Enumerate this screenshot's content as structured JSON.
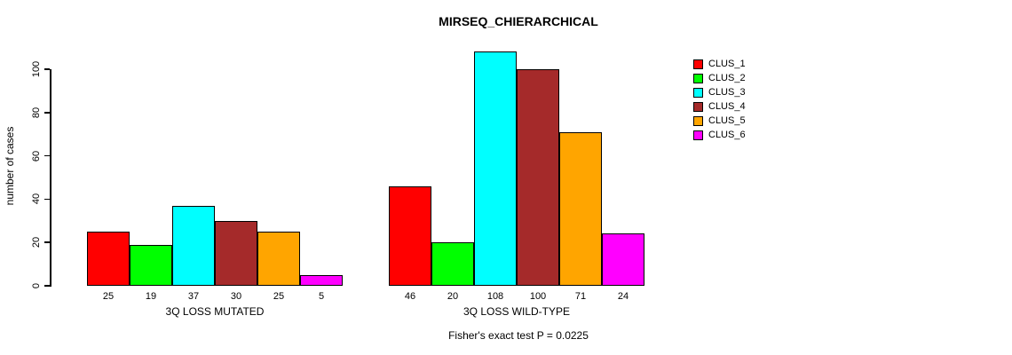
{
  "chart_data": {
    "type": "bar",
    "title": "MIRSEQ_CHIERARCHICAL",
    "ylabel": "number of cases",
    "ylim": [
      0,
      110
    ],
    "y_ticks": [
      0,
      20,
      40,
      60,
      80,
      100
    ],
    "grid": false,
    "legend_position": "right",
    "series": [
      {
        "name": "CLUS_1",
        "color": "#FF0000"
      },
      {
        "name": "CLUS_2",
        "color": "#00FF00"
      },
      {
        "name": "CLUS_3",
        "color": "#00FFFF"
      },
      {
        "name": "CLUS_4",
        "color": "#A52A2A"
      },
      {
        "name": "CLUS_5",
        "color": "#FFA500"
      },
      {
        "name": "CLUS_6",
        "color": "#FF00FF"
      }
    ],
    "groups": [
      {
        "label": "3Q LOSS MUTATED",
        "values": [
          25,
          19,
          37,
          30,
          25,
          5
        ]
      },
      {
        "label": "3Q LOSS WILD-TYPE",
        "values": [
          46,
          20,
          108,
          100,
          71,
          24
        ]
      }
    ],
    "footnote": "Fisher's exact test P = 0.0225"
  }
}
